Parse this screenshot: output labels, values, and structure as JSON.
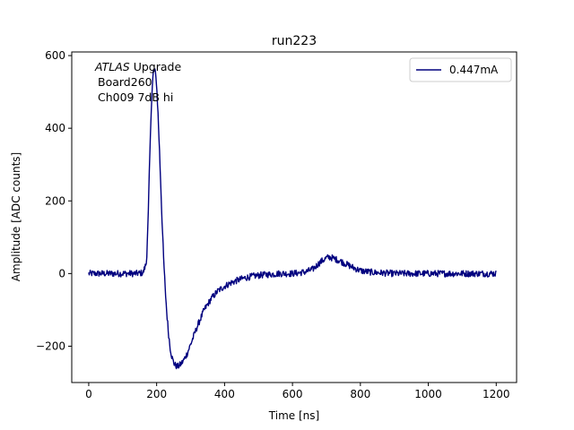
{
  "chart_data": {
    "type": "line",
    "title": "run223",
    "xlabel": "Time [ns]",
    "ylabel": "Amplitude [ADC counts]",
    "xlim": [
      -50,
      1260
    ],
    "ylim": [
      -300,
      610
    ],
    "xticks": [
      0,
      200,
      400,
      600,
      800,
      1000,
      1200
    ],
    "xtick_labels": [
      "0",
      "200",
      "400",
      "600",
      "800",
      "1000",
      "1200"
    ],
    "yticks": [
      -200,
      0,
      200,
      400,
      600
    ],
    "ytick_labels": [
      "−200",
      "0",
      "200",
      "400",
      "600"
    ],
    "grid": false,
    "legend_position": "top-right",
    "annotation": {
      "experiment": "ATLAS",
      "experiment_suffix": " Upgrade",
      "line2": "Board260",
      "line3": "Ch009 7dB hi"
    },
    "series": [
      {
        "name": "0.447mA",
        "color": "#00007f",
        "x": [
          0,
          20,
          40,
          60,
          80,
          100,
          120,
          140,
          160,
          170,
          175,
          180,
          185,
          190,
          195,
          200,
          205,
          210,
          215,
          220,
          225,
          230,
          235,
          240,
          245,
          250,
          255,
          260,
          265,
          270,
          275,
          280,
          290,
          300,
          310,
          320,
          340,
          360,
          380,
          400,
          420,
          440,
          460,
          480,
          500,
          520,
          540,
          560,
          580,
          600,
          620,
          640,
          660,
          680,
          700,
          710,
          720,
          740,
          760,
          780,
          800,
          820,
          840,
          860,
          880,
          900,
          950,
          1000,
          1050,
          1100,
          1150,
          1200
        ],
        "y": [
          0,
          0,
          0,
          0,
          0,
          0,
          0,
          0,
          2,
          30,
          150,
          330,
          480,
          555,
          560,
          520,
          420,
          300,
          170,
          50,
          -40,
          -110,
          -165,
          -205,
          -230,
          -245,
          -252,
          -256,
          -255,
          -250,
          -245,
          -238,
          -220,
          -195,
          -170,
          -145,
          -100,
          -70,
          -48,
          -35,
          -25,
          -18,
          -12,
          -8,
          -5,
          -3,
          -2,
          0,
          0,
          0,
          2,
          5,
          12,
          30,
          43,
          45,
          42,
          35,
          25,
          16,
          8,
          5,
          3,
          2,
          1,
          0,
          0,
          0,
          0,
          0,
          0,
          0
        ]
      }
    ]
  }
}
